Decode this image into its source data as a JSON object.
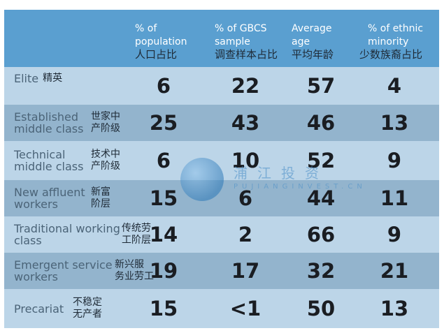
{
  "headers": [
    {
      "en": "% of\npopulation",
      "cn": "人口占比"
    },
    {
      "en": "% of GBCS\nsample",
      "cn": "调查样本占比"
    },
    {
      "en": "Average\nage",
      "cn": "平均年龄"
    },
    {
      "en": "% of ethnic\nminority",
      "cn": "少数族裔占比"
    }
  ],
  "rows": [
    {
      "label": "Elite",
      "cn": "精英",
      "values": [
        "6",
        "22",
        "57",
        "4"
      ]
    },
    {
      "label": "Established\nmiddle class",
      "cn": "世家中\n产阶级",
      "values": [
        "25",
        "43",
        "46",
        "13"
      ]
    },
    {
      "label": "Technical\nmiddle class",
      "cn": "技术中\n产阶级",
      "values": [
        "6",
        "10",
        "52",
        "9"
      ]
    },
    {
      "label": "New affluent\nworkers",
      "cn": "新富\n阶层",
      "values": [
        "15",
        "6",
        "44",
        "11"
      ]
    },
    {
      "label": "Traditional working\nclass",
      "cn": "传统劳\n工阶层",
      "values": [
        "14",
        "2",
        "66",
        "9"
      ]
    },
    {
      "label": "Emergent service\nworkers",
      "cn": "新兴服\n务业劳工",
      "values": [
        "19",
        "17",
        "32",
        "21"
      ]
    },
    {
      "label": "Precariat",
      "cn": "不稳定\n无产者",
      "values": [
        "15",
        "<1",
        "50",
        "13"
      ]
    }
  ],
  "watermark": {
    "text": "浦江投资",
    "sub": "PUJIANGINVEST.CN"
  },
  "colors": {
    "header": "#5a9fd0",
    "row_light": "#bcd5e8",
    "row_dark": "#93b4cd"
  }
}
